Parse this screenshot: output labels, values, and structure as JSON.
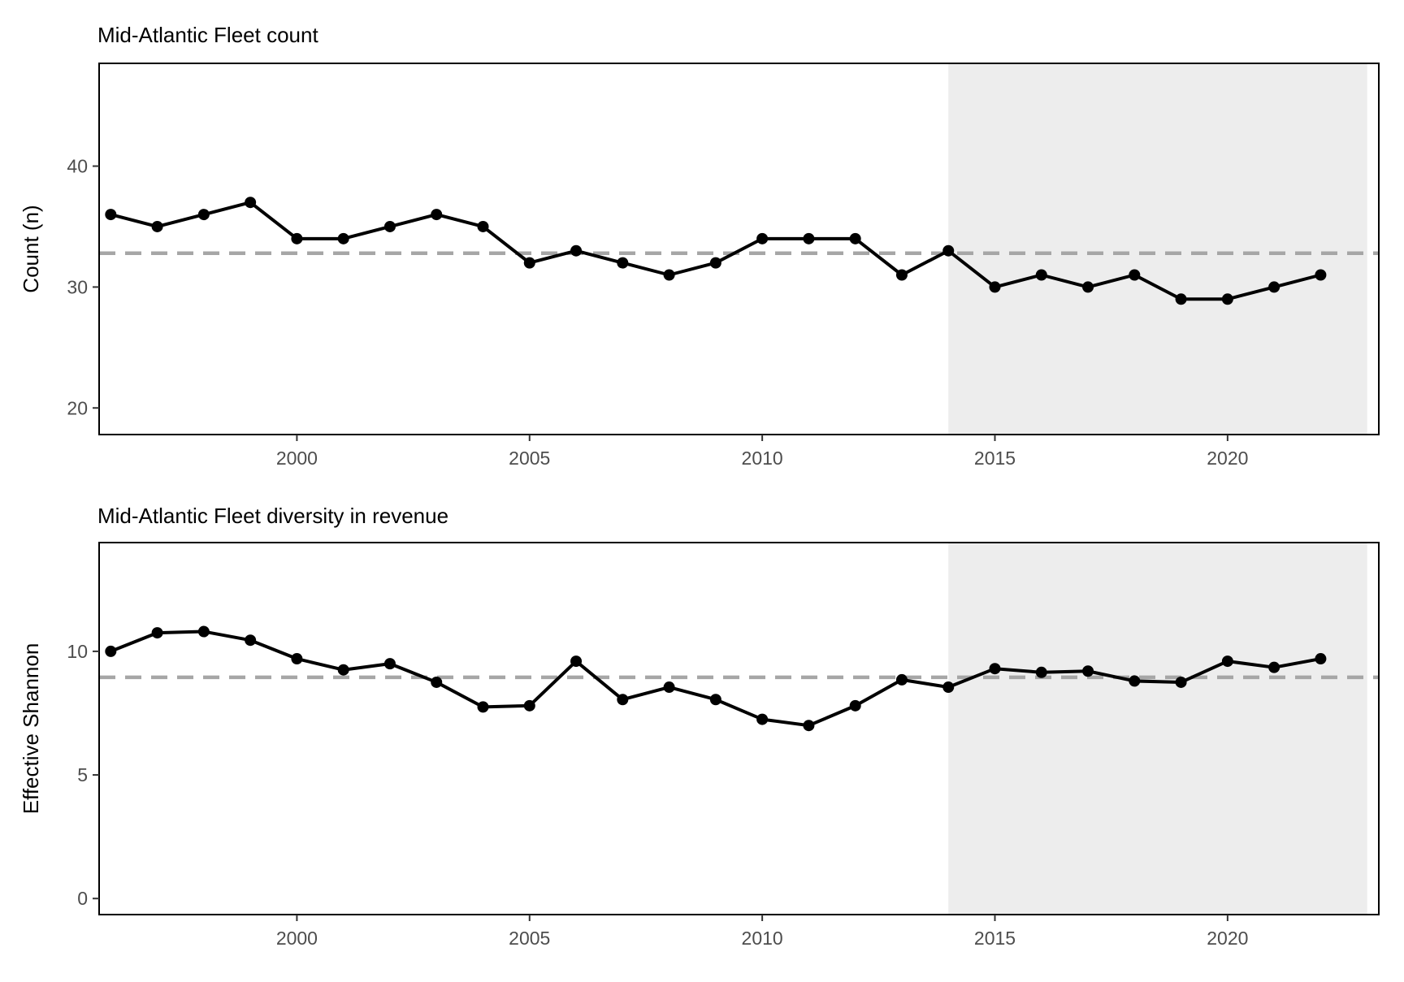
{
  "chart_data": [
    {
      "type": "line",
      "title": "Mid-Atlantic Fleet count",
      "xlabel": "",
      "ylabel": "Count (n)",
      "xlim": [
        1995.75,
        2023.25
      ],
      "ylim": [
        17.8,
        48.5
      ],
      "xticks": [
        2000,
        2005,
        2010,
        2015,
        2020
      ],
      "yticks": [
        20,
        30,
        40
      ],
      "shaded_region": {
        "x_start": 2014,
        "x_end": 2023,
        "color": "#ededed"
      },
      "reference_line": {
        "y": 32.8,
        "style": "dashed",
        "color": "#a6a6a6"
      },
      "grid": false,
      "series": [
        {
          "color": "#000000",
          "x": [
            1996,
            1997,
            1998,
            1999,
            2000,
            2001,
            2002,
            2003,
            2004,
            2005,
            2006,
            2007,
            2008,
            2009,
            2010,
            2011,
            2012,
            2013,
            2014,
            2015,
            2016,
            2017,
            2018,
            2019,
            2020,
            2021,
            2022
          ],
          "values": [
            36,
            35,
            36,
            37,
            34,
            34,
            35,
            36,
            35,
            32,
            33,
            32,
            31,
            32,
            34,
            34,
            34,
            31,
            33,
            30,
            31,
            30,
            31,
            29,
            29,
            30,
            31
          ]
        }
      ]
    },
    {
      "type": "line",
      "title": "Mid-Atlantic Fleet diversity in revenue",
      "xlabel": "",
      "ylabel": "Effective Shannon",
      "xlim": [
        1995.75,
        2023.25
      ],
      "ylim": [
        -0.65,
        14.4
      ],
      "xticks": [
        2000,
        2005,
        2010,
        2015,
        2020
      ],
      "yticks": [
        0,
        5,
        10
      ],
      "shaded_region": {
        "x_start": 2014,
        "x_end": 2023,
        "color": "#ededed"
      },
      "reference_line": {
        "y": 8.95,
        "style": "dashed",
        "color": "#a6a6a6"
      },
      "grid": false,
      "series": [
        {
          "color": "#000000",
          "x": [
            1996,
            1997,
            1998,
            1999,
            2000,
            2001,
            2002,
            2003,
            2004,
            2005,
            2006,
            2007,
            2008,
            2009,
            2010,
            2011,
            2012,
            2013,
            2014,
            2015,
            2016,
            2017,
            2018,
            2019,
            2020,
            2021,
            2022
          ],
          "values": [
            10.0,
            10.75,
            10.8,
            10.45,
            9.7,
            9.25,
            9.5,
            8.75,
            7.75,
            7.8,
            9.6,
            8.05,
            8.55,
            8.05,
            7.25,
            7.0,
            7.8,
            8.85,
            8.55,
            9.3,
            9.15,
            9.2,
            8.8,
            8.75,
            9.6,
            9.35,
            9.7
          ]
        }
      ]
    }
  ]
}
